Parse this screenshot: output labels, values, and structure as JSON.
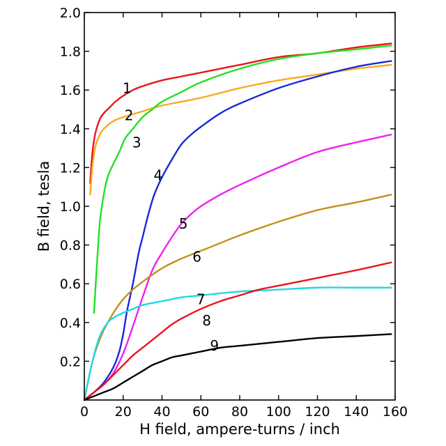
{
  "chart_data": {
    "type": "line",
    "title": "",
    "xlabel": "H field, ampere-turns / inch",
    "ylabel": "B field, tesla",
    "xlim": [
      0,
      160
    ],
    "ylim": [
      0,
      2.0
    ],
    "xticks": [
      0,
      20,
      40,
      60,
      80,
      100,
      120,
      140,
      160
    ],
    "yticks": [
      0.2,
      0.4,
      0.6,
      0.8,
      1.0,
      1.2,
      1.4,
      1.6,
      1.8,
      2.0
    ],
    "ytick_labels": [
      "0.2",
      "0.4",
      "0.6",
      "0.8",
      "1.0",
      "1.2",
      "1.4",
      "1.6",
      "1.8",
      "2.0"
    ],
    "grid": false,
    "legend": "none",
    "series": [
      {
        "label": "1",
        "color": "#e8141c",
        "label_pos": [
          22,
          1.61
        ],
        "x": [
          3,
          4,
          5,
          6,
          8,
          10,
          13,
          16,
          20,
          25,
          30,
          40,
          50,
          60,
          80,
          100,
          120,
          140,
          158
        ],
        "y": [
          1.12,
          1.26,
          1.34,
          1.39,
          1.45,
          1.48,
          1.51,
          1.54,
          1.57,
          1.6,
          1.62,
          1.65,
          1.67,
          1.69,
          1.73,
          1.77,
          1.79,
          1.82,
          1.84
        ]
      },
      {
        "label": "2",
        "color": "#f8aa1c",
        "label_pos": [
          23,
          1.47
        ],
        "x": [
          3,
          4,
          5,
          6,
          8,
          10,
          15,
          20,
          30,
          40,
          60,
          80,
          100,
          120,
          140,
          158
        ],
        "y": [
          1.06,
          1.19,
          1.27,
          1.32,
          1.37,
          1.4,
          1.44,
          1.46,
          1.49,
          1.52,
          1.56,
          1.61,
          1.65,
          1.68,
          1.71,
          1.73
        ]
      },
      {
        "label": "3",
        "color": "#22e022",
        "label_pos": [
          27,
          1.33
        ],
        "x": [
          5,
          6,
          7,
          8,
          10,
          12,
          15,
          18,
          21,
          25,
          30,
          35,
          40,
          50,
          60,
          80,
          100,
          120,
          140,
          158
        ],
        "y": [
          0.45,
          0.62,
          0.78,
          0.92,
          1.06,
          1.15,
          1.22,
          1.28,
          1.35,
          1.4,
          1.46,
          1.5,
          1.54,
          1.59,
          1.64,
          1.71,
          1.76,
          1.79,
          1.81,
          1.83
        ]
      },
      {
        "label": "4",
        "color": "#1a28d8",
        "label_pos": [
          38,
          1.16
        ],
        "x": [
          0,
          5,
          10,
          15,
          18,
          20,
          22,
          25,
          28,
          30,
          33,
          36,
          40,
          45,
          50,
          55,
          60,
          70,
          80,
          100,
          120,
          140,
          158
        ],
        "y": [
          0,
          0.04,
          0.09,
          0.17,
          0.25,
          0.34,
          0.46,
          0.6,
          0.76,
          0.84,
          0.96,
          1.06,
          1.15,
          1.24,
          1.32,
          1.37,
          1.41,
          1.48,
          1.53,
          1.61,
          1.67,
          1.72,
          1.75
        ]
      },
      {
        "label": "5",
        "color": "#f020f0",
        "label_pos": [
          51,
          0.91
        ],
        "x": [
          0,
          5,
          10,
          15,
          20,
          25,
          30,
          35,
          40,
          45,
          50,
          55,
          60,
          70,
          80,
          100,
          120,
          140,
          158
        ],
        "y": [
          0,
          0.04,
          0.08,
          0.14,
          0.24,
          0.38,
          0.53,
          0.67,
          0.76,
          0.84,
          0.91,
          0.96,
          1.0,
          1.06,
          1.11,
          1.2,
          1.28,
          1.33,
          1.37
        ]
      },
      {
        "label": "6",
        "color": "#c4901c",
        "label_pos": [
          58,
          0.74
        ],
        "x": [
          0,
          2,
          4,
          6,
          10,
          15,
          20,
          25,
          30,
          40,
          50,
          60,
          70,
          80,
          100,
          120,
          140,
          158
        ],
        "y": [
          0,
          0.1,
          0.19,
          0.26,
          0.36,
          0.45,
          0.52,
          0.57,
          0.61,
          0.68,
          0.73,
          0.77,
          0.81,
          0.85,
          0.92,
          0.98,
          1.02,
          1.06
        ]
      },
      {
        "label": "7",
        "color": "#22d8e0",
        "label_pos": [
          60,
          0.52
        ],
        "x": [
          0,
          2,
          4,
          6,
          8,
          10,
          13,
          16,
          20,
          25,
          30,
          40,
          50,
          60,
          80,
          100,
          120,
          140,
          158
        ],
        "y": [
          0,
          0.1,
          0.19,
          0.27,
          0.33,
          0.37,
          0.41,
          0.43,
          0.45,
          0.47,
          0.49,
          0.51,
          0.53,
          0.54,
          0.56,
          0.57,
          0.58,
          0.58,
          0.58
        ]
      },
      {
        "label": "8",
        "color": "#e8141c",
        "label_pos": [
          63,
          0.41
        ],
        "x": [
          0,
          5,
          10,
          15,
          20,
          25,
          30,
          35,
          40,
          45,
          50,
          60,
          70,
          80,
          90,
          100,
          120,
          140,
          158
        ],
        "y": [
          0,
          0.04,
          0.08,
          0.13,
          0.18,
          0.23,
          0.27,
          0.31,
          0.35,
          0.39,
          0.42,
          0.47,
          0.51,
          0.54,
          0.57,
          0.59,
          0.63,
          0.67,
          0.71
        ]
      },
      {
        "label": "9",
        "color": "#000000",
        "label_pos": [
          67,
          0.28
        ],
        "x": [
          0,
          5,
          10,
          15,
          20,
          25,
          30,
          35,
          40,
          45,
          50,
          60,
          70,
          80,
          100,
          120,
          140,
          158
        ],
        "y": [
          0,
          0.02,
          0.04,
          0.06,
          0.09,
          0.12,
          0.15,
          0.18,
          0.2,
          0.22,
          0.23,
          0.25,
          0.27,
          0.28,
          0.3,
          0.32,
          0.33,
          0.34
        ]
      }
    ]
  }
}
